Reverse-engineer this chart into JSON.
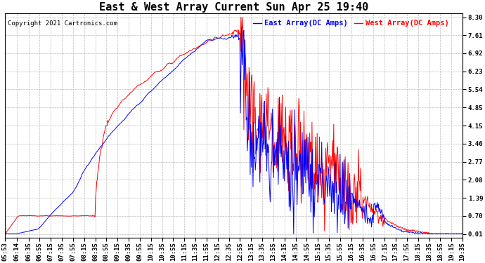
{
  "title": "East & West Array Current Sun Apr 25 19:40",
  "copyright": "Copyright 2021 Cartronics.com",
  "legend_east": "East Array(DC Amps)",
  "legend_west": "West Array(DC Amps)",
  "east_color": "blue",
  "west_color": "red",
  "yticks": [
    0.01,
    0.7,
    1.39,
    2.08,
    2.77,
    3.46,
    4.15,
    4.85,
    5.54,
    6.23,
    6.92,
    7.61,
    8.3
  ],
  "ymin": 0.01,
  "ymax": 8.3,
  "background_color": "#ffffff",
  "grid_color": "#bbbbbb",
  "title_fontsize": 11,
  "tick_fontsize": 6.5,
  "legend_fontsize": 7.5,
  "copyright_fontsize": 6.5,
  "xtick_labels": [
    "05:53",
    "06:14",
    "06:35",
    "06:55",
    "07:15",
    "07:35",
    "07:55",
    "08:15",
    "08:35",
    "08:55",
    "09:15",
    "09:35",
    "09:55",
    "10:15",
    "10:35",
    "10:55",
    "11:15",
    "11:35",
    "11:55",
    "12:15",
    "12:35",
    "12:55",
    "13:15",
    "13:35",
    "13:55",
    "14:15",
    "14:35",
    "14:55",
    "15:15",
    "15:35",
    "15:55",
    "16:15",
    "16:35",
    "16:55",
    "17:15",
    "17:35",
    "17:55",
    "18:15",
    "18:35",
    "18:55",
    "19:15",
    "19:35"
  ]
}
